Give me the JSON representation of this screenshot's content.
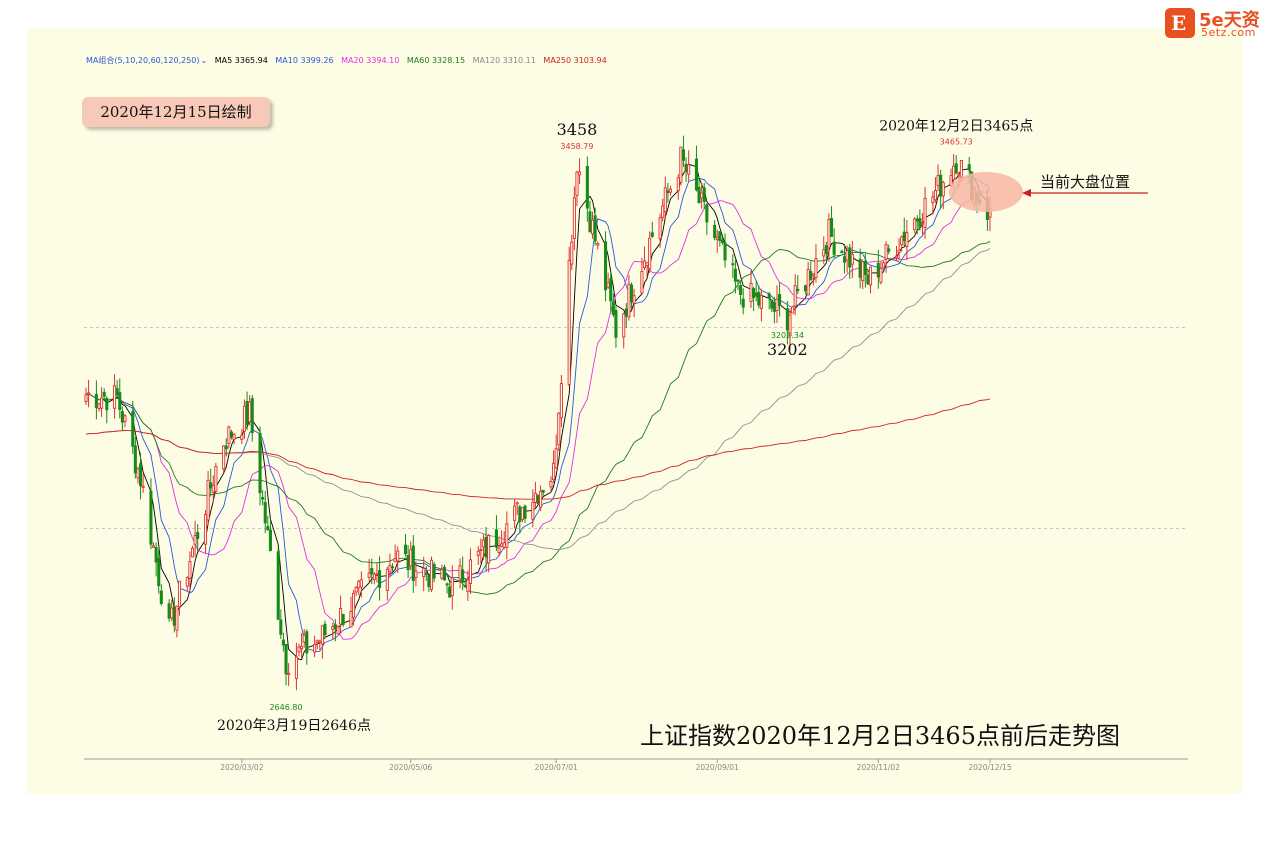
{
  "logo": {
    "badge": "E",
    "brand": "5e天资",
    "domain": "5etz.com"
  },
  "badge_drawn": "2020年12月15日绘制",
  "chart_title": "上证指数2020年12月2日3465点前后走势图",
  "current_position_label": "当前大盘位置",
  "ma_legend": {
    "group": "MA组合(5,10,20,60,120,250)",
    "ma5": "MA5 3365.94",
    "ma10": "MA10 3399.26",
    "ma20": "MA20 3394.10",
    "ma60": "MA60 3328.15",
    "ma120": "MA120 3310.11",
    "ma250": "MA250 3103.94"
  },
  "colors": {
    "up": "#e03030",
    "down": "#188a18",
    "ma5": "#000000",
    "ma10": "#2a58d8",
    "ma20": "#e030e0",
    "ma60": "#207a20",
    "ma120": "#909090",
    "ma250": "#d02020",
    "highlight": "#f7b7a4"
  },
  "chart_data": {
    "type": "candlestick",
    "title": "上证指数2020年12月2日3465点前后走势图",
    "x_ticks": [
      "2020/03/02",
      "2020/05/06",
      "2020/07/01",
      "2020/09/01",
      "2020/11/02",
      "2020/12/15"
    ],
    "ylim": [
      2550,
      3530
    ],
    "gridlines": [
      3200,
      2900
    ],
    "annotations": [
      {
        "date": "2020/03/19",
        "value": 2646.8,
        "small": "2646.80",
        "large": "2020年3月19日2646点"
      },
      {
        "date": "2020/07/09",
        "value": 3458.79,
        "small": "3458.79",
        "large": "3458"
      },
      {
        "date": "2020/09/28",
        "value": 3202.34,
        "small": "3202.34",
        "large": "3202"
      },
      {
        "date": "2020/12/02",
        "value": 3465.73,
        "small": "3465.73",
        "large": "2020年12月2日3465点"
      }
    ],
    "trend_anchors": [
      {
        "date": "2020/01/02",
        "value": 3100
      },
      {
        "date": "2020/01/14",
        "value": 3095
      },
      {
        "date": "2020/01/23",
        "value": 2976
      },
      {
        "date": "2020/02/03",
        "value": 2746
      },
      {
        "date": "2020/02/24",
        "value": 3031
      },
      {
        "date": "2020/03/05",
        "value": 3071
      },
      {
        "date": "2020/03/19",
        "value": 2702
      },
      {
        "date": "2020/04/01",
        "value": 2735
      },
      {
        "date": "2020/04/30",
        "value": 2860
      },
      {
        "date": "2020/05/22",
        "value": 2813
      },
      {
        "date": "2020/06/30",
        "value": 2984
      },
      {
        "date": "2020/07/09",
        "value": 3450
      },
      {
        "date": "2020/07/24",
        "value": 3196
      },
      {
        "date": "2020/08/18",
        "value": 3451
      },
      {
        "date": "2020/09/09",
        "value": 3254
      },
      {
        "date": "2020/09/28",
        "value": 3217
      },
      {
        "date": "2020/10/14",
        "value": 3340
      },
      {
        "date": "2020/10/29",
        "value": 3270
      },
      {
        "date": "2020/11/24",
        "value": 3402
      },
      {
        "date": "2020/12/02",
        "value": 3452
      },
      {
        "date": "2020/12/15",
        "value": 3367
      }
    ],
    "ma_values_at_end": {
      "MA5": 3365.94,
      "MA10": 3399.26,
      "MA20": 3394.1,
      "MA60": 3328.15,
      "MA120": 3310.11,
      "MA250": 3103.94
    }
  }
}
